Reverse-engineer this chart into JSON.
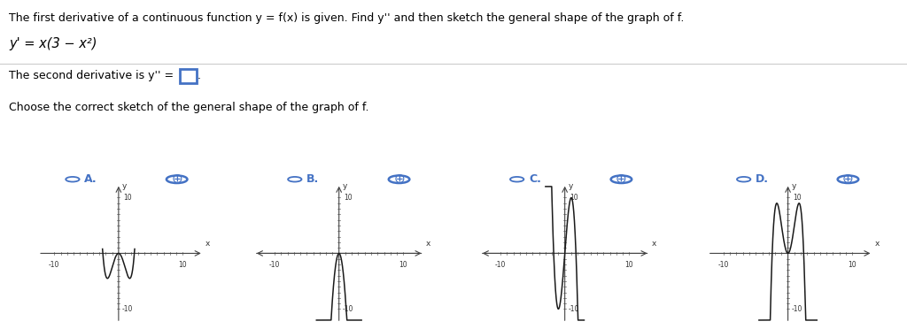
{
  "title_line1": "The first derivative of a continuous function y = f(x) is given. Find y'' and then sketch the general shape of the graph of f.",
  "equation_text": "y' = x(3 - x²)",
  "second_deriv_label": "The second derivative is y'' =",
  "choose_text": "Choose the correct sketch of the general shape of the graph of f.",
  "graph_labels": [
    "A.",
    "B.",
    "C.",
    "D."
  ],
  "bg_color": "#ffffff",
  "text_color": "#000000",
  "curve_color": "#1a1a1a",
  "axis_color": "#444444",
  "tick_color": "#666666",
  "tick_label_color": "#333333",
  "separator_color": "#cccccc",
  "radio_color": "#4472c4",
  "label_color": "#4472c4",
  "box_edge_color": "#4472c4",
  "graph_xlim": [
    -13.5,
    14
  ],
  "graph_ylim": [
    -13,
    13
  ]
}
